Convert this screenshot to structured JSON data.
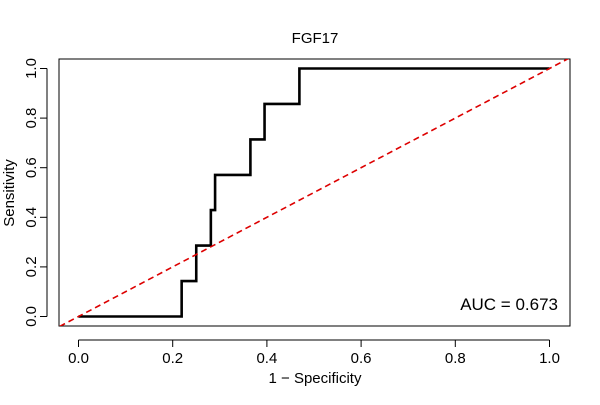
{
  "chart_data": {
    "type": "line",
    "title": "FGF17",
    "xlabel": "1 − Specificity",
    "ylabel": "Sensitivity",
    "xlim": [
      0.0,
      1.0
    ],
    "ylim": [
      0.0,
      1.0
    ],
    "xticks": [
      0.0,
      0.2,
      0.4,
      0.6,
      0.8,
      1.0
    ],
    "xtick_labels": [
      "0.0",
      "0.2",
      "0.4",
      "0.6",
      "0.8",
      "1.0"
    ],
    "yticks": [
      0.0,
      0.2,
      0.4,
      0.6,
      0.8,
      1.0
    ],
    "ytick_labels": [
      "0.0",
      "0.2",
      "0.4",
      "0.6",
      "0.8",
      "1.0"
    ],
    "grid": false,
    "annotation": "AUC = 0.673",
    "series": [
      {
        "color": "#000000",
        "style": "solid",
        "x": [
          0.0,
          0.219,
          0.219,
          0.25,
          0.25,
          0.281,
          0.281,
          0.29,
          0.29,
          0.3,
          0.3,
          0.365,
          0.365,
          0.395,
          0.395,
          0.469,
          0.469,
          1.0
        ],
        "y": [
          0.0,
          0.0,
          0.143,
          0.143,
          0.286,
          0.286,
          0.429,
          0.429,
          0.571,
          0.571,
          0.571,
          0.571,
          0.714,
          0.714,
          0.857,
          0.857,
          1.0,
          1.0
        ]
      },
      {
        "color": "#dd0000",
        "style": "dashed",
        "x": [
          -0.04,
          1.04
        ],
        "y": [
          -0.04,
          1.04
        ]
      }
    ]
  }
}
